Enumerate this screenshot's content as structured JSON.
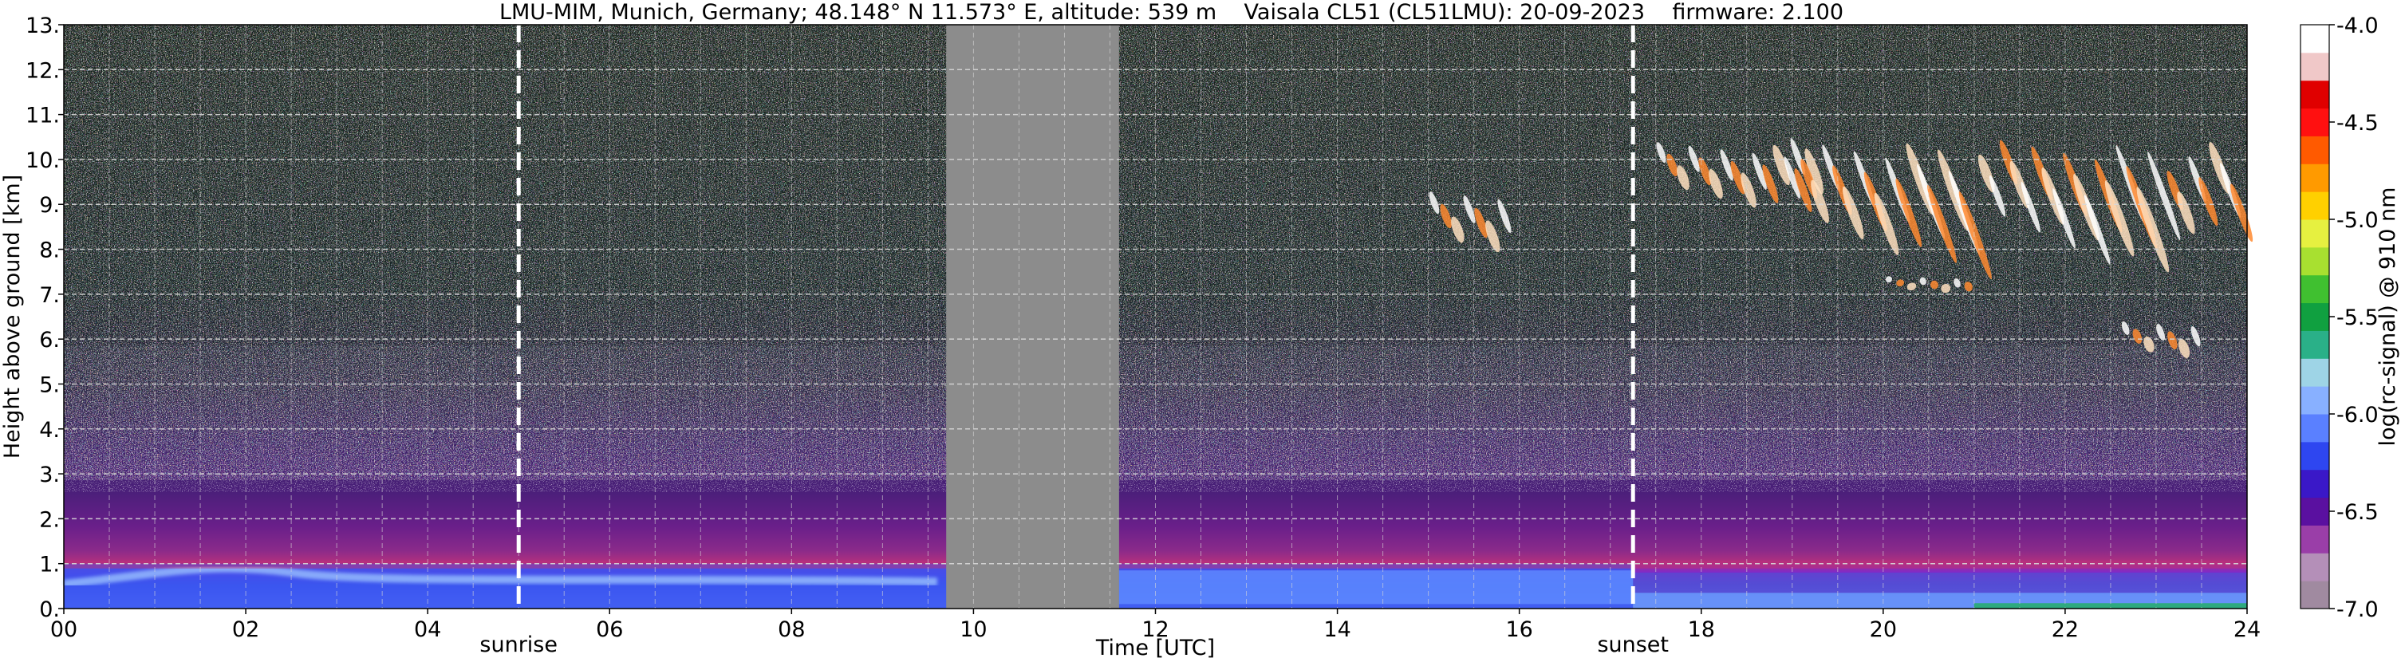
{
  "chart_data": {
    "type": "heatmap",
    "title": "LMU-MIM, Munich, Germany; 48.148° N 11.573° E, altitude: 539 m    Vaisala CL51 (CL51LMU): 20-09-2023    firmware: 2.100",
    "xlabel": "Time [UTC]",
    "ylabel": "Height above ground [km]",
    "xlim": [
      0,
      24
    ],
    "ylim": [
      0,
      13
    ],
    "x_tick_values": [
      0,
      2,
      4,
      6,
      8,
      10,
      12,
      14,
      16,
      18,
      20,
      22,
      24
    ],
    "x_tick_labels": [
      "00",
      "02",
      "04",
      "06",
      "08",
      "10",
      "12",
      "14",
      "16",
      "18",
      "20",
      "22",
      "24"
    ],
    "y_tick_values": [
      0,
      1,
      2,
      3,
      4,
      5,
      6,
      7,
      8,
      9,
      10,
      11,
      12,
      13
    ],
    "y_tick_labels": [
      "0.",
      "1.",
      "2.",
      "3.",
      "4.",
      "5.",
      "6.",
      "7.",
      "8.",
      "9.",
      "10.",
      "11.",
      "12.",
      "13."
    ],
    "grid": true,
    "markers": [
      {
        "label": "sunrise",
        "time": 5.0
      },
      {
        "label": "sunset",
        "time": 17.25
      }
    ],
    "no_data_interval": [
      9.7,
      11.6
    ],
    "no_data_color": "#8c8c8c",
    "features": {
      "boundary_layer_top_km": 1.0,
      "boundary_layer_top_km_evening": 0.8,
      "noise_increase_above_km": 3.0,
      "cirrus": [
        {
          "time": [
            15.0,
            15.9
          ],
          "height": [
            7.8,
            9.3
          ]
        },
        {
          "time": [
            17.5,
            19.3
          ],
          "height": [
            9.0,
            10.4
          ]
        },
        {
          "time": [
            19.0,
            24.0
          ],
          "height": [
            8.0,
            10.5
          ]
        },
        {
          "time": [
            20.0,
            21.0
          ],
          "height": [
            7.0,
            7.4
          ]
        },
        {
          "time": [
            22.6,
            23.5
          ],
          "height": [
            5.5,
            6.4
          ]
        }
      ]
    },
    "colorbar": {
      "label": "log(rc-signal) @ 910 nm",
      "range": [
        -7.0,
        -4.0
      ],
      "tick_values": [
        -7.0,
        -6.5,
        -6.0,
        -5.5,
        -5.0,
        -4.5,
        -4.0
      ],
      "tick_labels": [
        "-7.0",
        "-6.5",
        "-6.0",
        "-5.5",
        "-5.0",
        "-4.5",
        "-4.0"
      ],
      "colors": [
        "#a08aa0",
        "#b48fb8",
        "#9a3ea8",
        "#5a10a0",
        "#3a18c8",
        "#2e46f0",
        "#5a80ff",
        "#88b0ff",
        "#9ed4e6",
        "#2ab088",
        "#10a040",
        "#40c030",
        "#a8e030",
        "#e6f040",
        "#ffd000",
        "#ff9a00",
        "#ff5a00",
        "#ff1010",
        "#e00000",
        "#f0c8c8",
        "#ffffff"
      ]
    }
  }
}
